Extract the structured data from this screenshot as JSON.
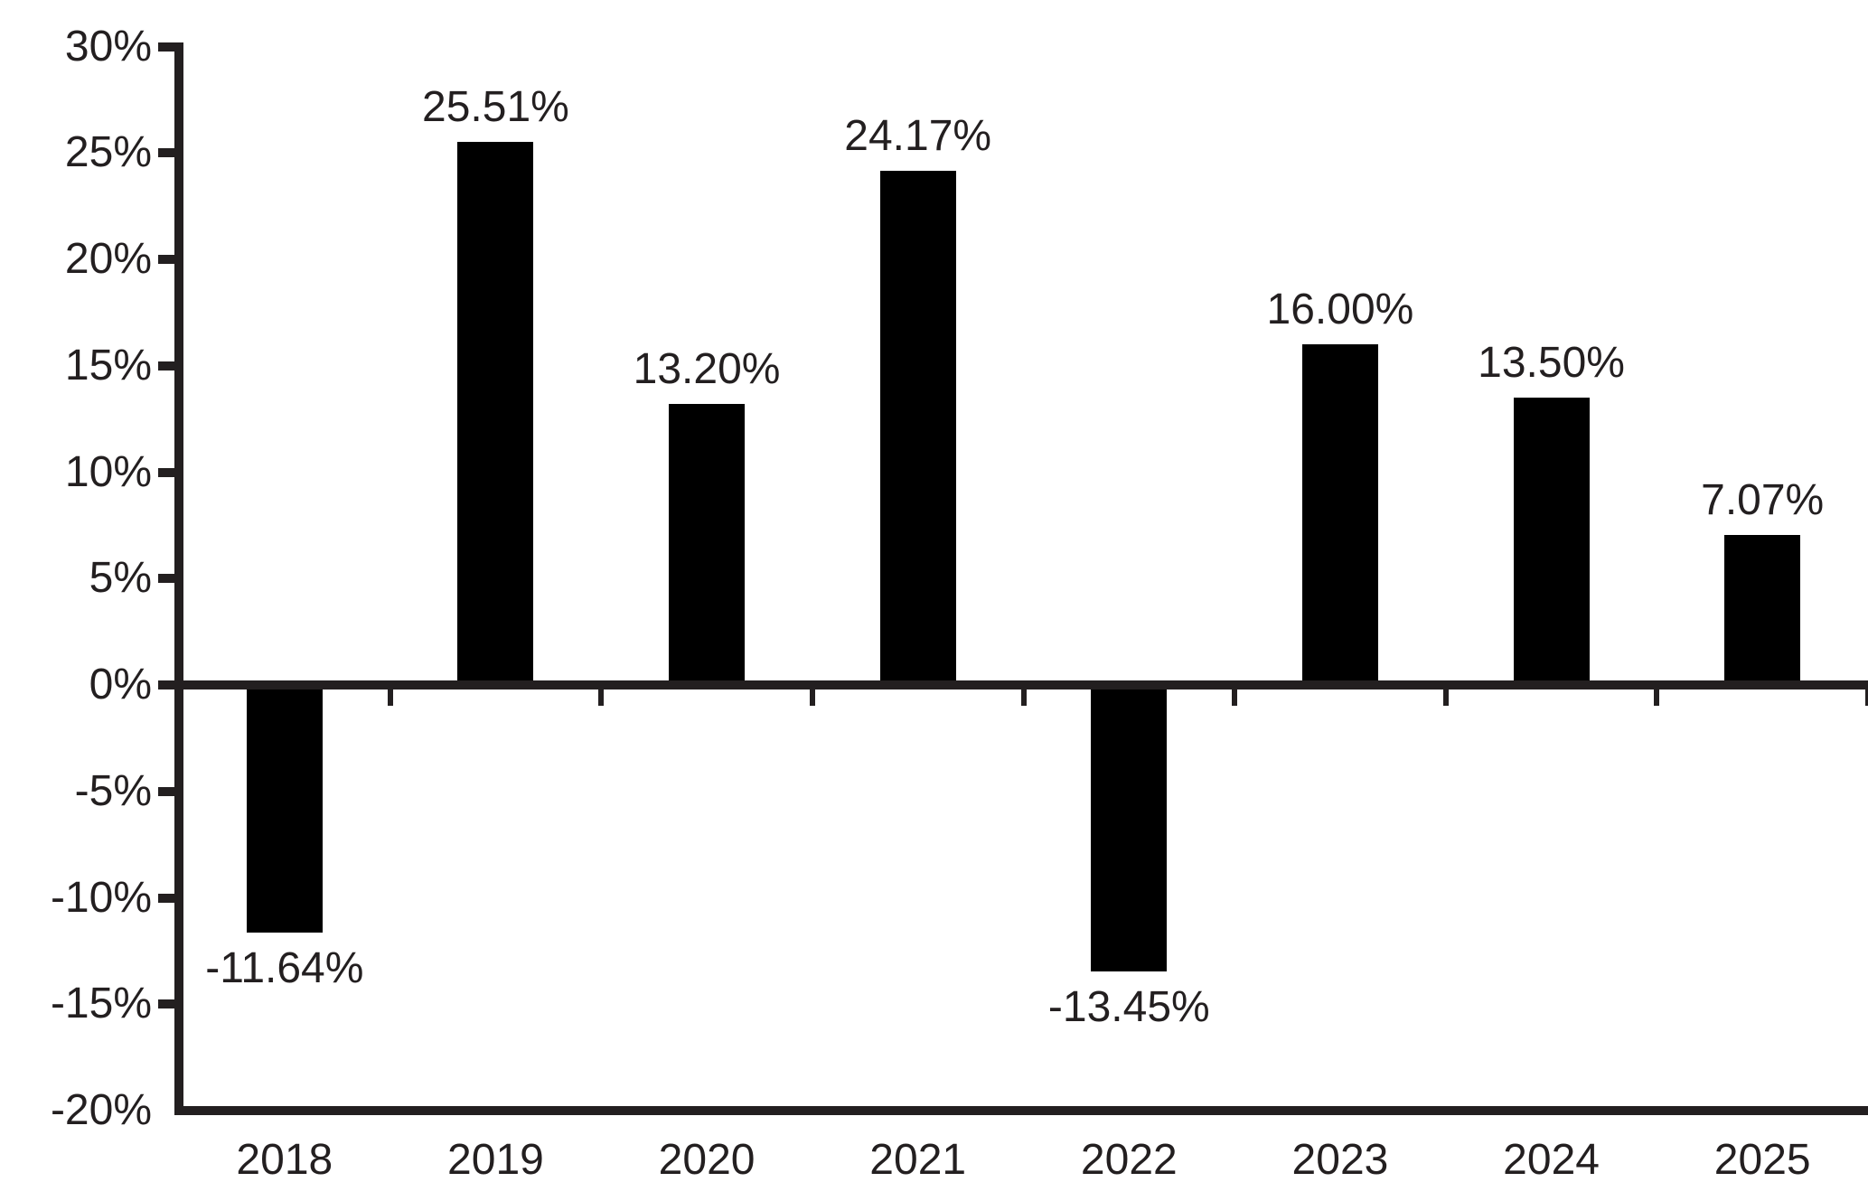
{
  "chart_data": {
    "type": "bar",
    "title": "",
    "xlabel": "",
    "ylabel": "",
    "categories": [
      "2018",
      "2019",
      "2020",
      "2021",
      "2022",
      "2023",
      "2024",
      "2025"
    ],
    "values": [
      -11.64,
      25.51,
      13.2,
      24.17,
      -13.45,
      16.0,
      13.5,
      7.07
    ],
    "value_labels": [
      "-11.64%",
      "25.51%",
      "13.20%",
      "24.17%",
      "-13.45%",
      "16.00%",
      "13.50%",
      "7.07%"
    ],
    "ylim": [
      -20,
      30
    ],
    "ytick_step": 5,
    "ytick_labels": [
      "30%",
      "25%",
      "20%",
      "15%",
      "10%",
      "5%",
      "0%",
      "-5%",
      "-10%",
      "-15%",
      "-20%"
    ],
    "grid": false,
    "legend": "none",
    "bar_color": "#000000",
    "axis_color": "#231f20",
    "text_color": "#231f20"
  }
}
